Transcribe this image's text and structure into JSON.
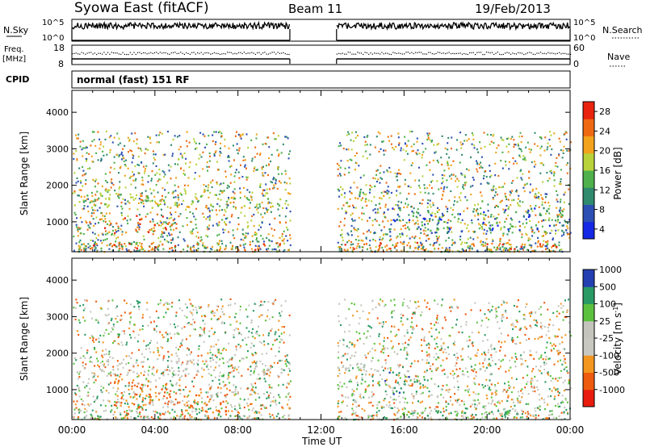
{
  "header": {
    "station": "Syowa East (fitACF)",
    "beam": "Beam 11",
    "date": "19/Feb/2013"
  },
  "top_panel_labels": {
    "nsky": "N.Sky",
    "nsearch": "N.Search",
    "nsky_ticks": [
      "10^5",
      "10^0"
    ],
    "nsearch_ticks": [
      "10^5",
      "10^0"
    ],
    "freq_label": "Freq.",
    "freq_unit": "[MHz]",
    "freq_ticks": [
      "18",
      "8"
    ],
    "nave": "Nave",
    "nave_ticks": [
      "60",
      "0"
    ],
    "cpid": "CPID",
    "cpid_value": "normal (fast) 151 RF"
  },
  "colors": {
    "power_scale": [
      "#1428e6",
      "#2c4fb4",
      "#2f8a6e",
      "#4fb04c",
      "#b8d23a",
      "#f2a21c",
      "#ee6a12",
      "#e8240e"
    ],
    "velocity_scale": [
      "#e81c0c",
      "#ee5a0e",
      "#f3961f",
      "#c8c8c0",
      "#c4c4bc",
      "#5cc23e",
      "#2a9a64",
      "#2440b0"
    ],
    "panel_line": "#000000"
  },
  "chart_data": [
    {
      "type": "line",
      "title": "N.Sky / N.Search",
      "x": [
        "00:00",
        "04:00",
        "08:00",
        "10:30",
        "12:45",
        "16:00",
        "20:00",
        "24:00"
      ],
      "ylim_labels": [
        "10^0",
        "10^5"
      ],
      "note_gap": [
        "10:30",
        "12:45"
      ]
    },
    {
      "type": "line",
      "title": "Freq. / Nave",
      "ylim_freq": [
        8,
        18
      ],
      "ylim_nave": [
        0,
        60
      ],
      "note_gap": [
        "10:30",
        "12:45"
      ]
    },
    {
      "type": "heatmap",
      "xlabel": "",
      "ylabel": "Slant Range [km]",
      "ylim": [
        180,
        4600
      ],
      "yticks": [
        1000,
        2000,
        3000,
        4000
      ],
      "colorbar_label": "Power [dB]",
      "colorbar_ticks": [
        4,
        8,
        12,
        16,
        20,
        24,
        28
      ],
      "xticks": [
        "00:00",
        "04:00",
        "08:00",
        "12:00",
        "16:00",
        "20:00",
        "00:00"
      ],
      "data_gap": [
        "10:30",
        "12:45"
      ],
      "echo_bands": [
        {
          "t0": 0.0,
          "t1": 10.5,
          "r0": 1400,
          "r1": 1900,
          "level": "16-24"
        },
        {
          "t0": 1.5,
          "t1": 5.0,
          "r0": 700,
          "r1": 1200,
          "level": "20-28"
        },
        {
          "t0": 0.0,
          "t1": 10.5,
          "r0": 250,
          "r1": 450,
          "level": "20-28"
        },
        {
          "t0": 12.75,
          "t1": 24.0,
          "r0": 250,
          "r1": 450,
          "level": "20-28"
        },
        {
          "t0": 12.75,
          "t1": 15.0,
          "r0": 1500,
          "r1": 2000,
          "level": "16-24"
        },
        {
          "t0": 15.0,
          "t1": 24.0,
          "r0": 700,
          "r1": 1400,
          "level": "4-16"
        }
      ]
    },
    {
      "type": "heatmap",
      "xlabel": "Time UT",
      "ylabel": "Slant Range [km]",
      "ylim": [
        180,
        4600
      ],
      "yticks": [
        1000,
        2000,
        3000,
        4000
      ],
      "colorbar_label": "Velocity [m s^-1]",
      "colorbar_ticks": [
        -1000,
        -500,
        -100,
        -25,
        25,
        100,
        500,
        1000
      ],
      "xticks": [
        "00:00",
        "04:00",
        "08:00",
        "12:00",
        "16:00",
        "20:00",
        "00:00"
      ],
      "data_gap": [
        "10:30",
        "12:45"
      ],
      "echo_bands": [
        {
          "t0": 0.0,
          "t1": 10.5,
          "r0": 1400,
          "r1": 1900,
          "level": "-25..25"
        },
        {
          "t0": 2.0,
          "t1": 5.0,
          "r0": 500,
          "r1": 1300,
          "level": "-500..-100"
        },
        {
          "t0": 5.5,
          "t1": 7.5,
          "r0": 400,
          "r1": 1000,
          "level": "-500..-100"
        },
        {
          "t0": 12.75,
          "t1": 15.0,
          "r0": 1400,
          "r1": 2000,
          "level": "-25..25"
        },
        {
          "t0": 15.0,
          "t1": 17.0,
          "r0": 900,
          "r1": 1500,
          "level": "500..1000"
        },
        {
          "t0": 15.0,
          "t1": 24.0,
          "r0": 250,
          "r1": 450,
          "level": "25..100"
        }
      ]
    }
  ],
  "labels": {
    "power_axis": "Power [dB]",
    "velocity_axis": "Velocity [m s",
    "velocity_sup": "-1",
    "velocity_close": "]",
    "yaxis": "Slant Range [km]",
    "xaxis": "Time UT"
  }
}
